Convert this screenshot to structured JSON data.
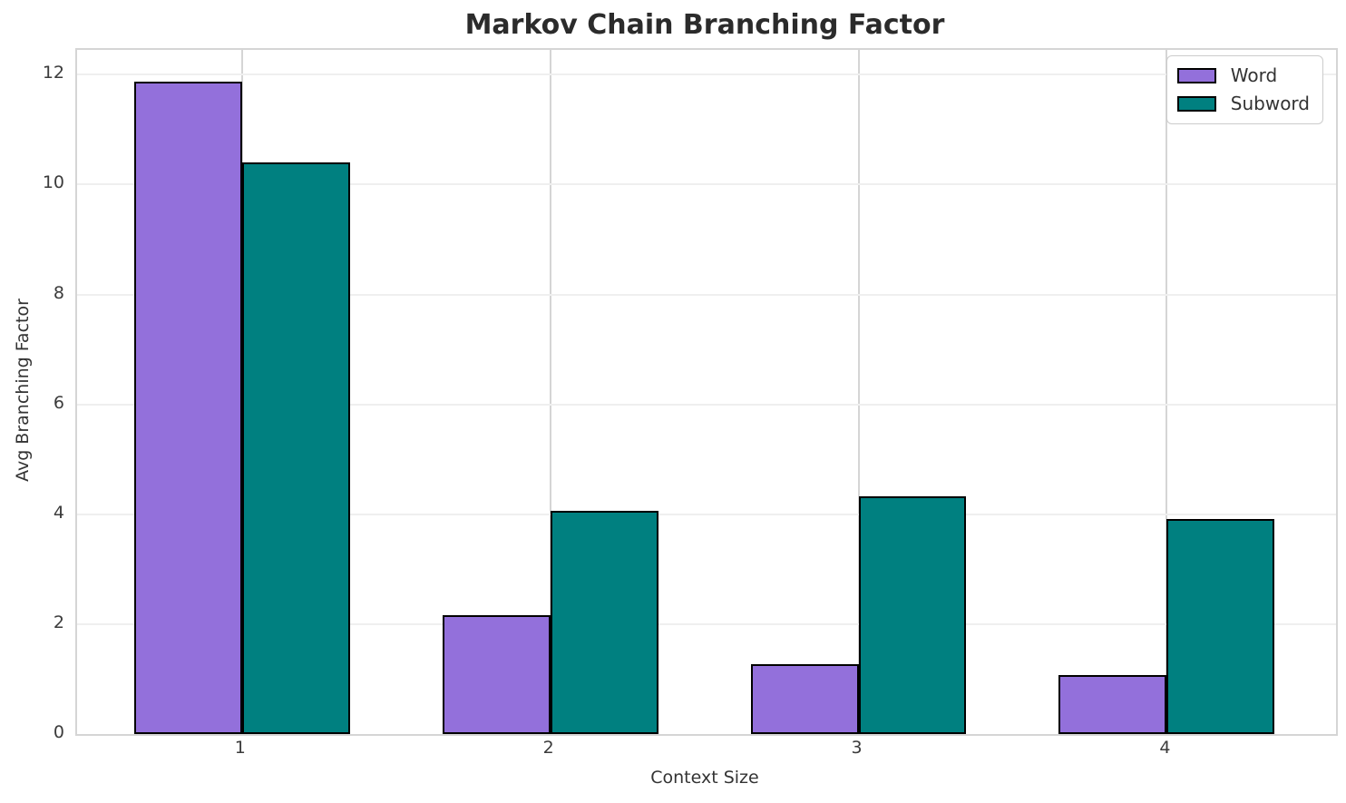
{
  "chart_data": {
    "type": "bar",
    "title": "Markov Chain Branching Factor",
    "xlabel": "Context Size",
    "ylabel": "Avg Branching Factor",
    "categories": [
      "1",
      "2",
      "3",
      "4"
    ],
    "series": [
      {
        "name": "Word",
        "color": "#9370DB",
        "values": [
          11.88,
          2.17,
          1.27,
          1.07
        ]
      },
      {
        "name": "Subword",
        "color": "#008080",
        "values": [
          10.4,
          4.07,
          4.32,
          3.91
        ]
      }
    ],
    "yticks": [
      0,
      2,
      4,
      6,
      8,
      10,
      12
    ],
    "ylim": [
      0,
      12.45
    ],
    "xlim": [
      -0.535,
      3.549
    ],
    "bar_width_units": 0.35,
    "grid": true,
    "legend_position": "upper right",
    "edge_color": "#000000"
  }
}
